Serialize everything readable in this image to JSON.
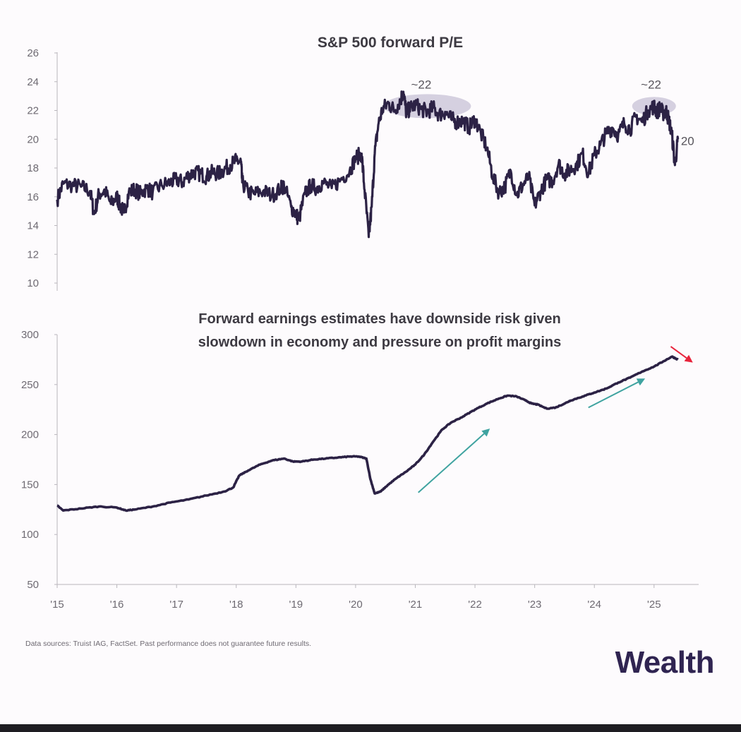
{
  "chart_data": [
    {
      "type": "line",
      "title": "S&P 500 forward P/E",
      "ylim": [
        10,
        26
      ],
      "yticks": [
        "26",
        "24",
        "22",
        "20",
        "18",
        "16",
        "14",
        "12",
        "10"
      ],
      "xlim": [
        2015,
        2025.7
      ],
      "series": [
        {
          "name": "S&P 500 forward P/E",
          "x": [
            2015.0,
            2015.1,
            2015.25,
            2015.4,
            2015.55,
            2015.62,
            2015.7,
            2015.8,
            2015.9,
            2016.0,
            2016.05,
            2016.12,
            2016.2,
            2016.3,
            2016.4,
            2016.5,
            2016.6,
            2016.75,
            2016.9,
            2017.0,
            2017.1,
            2017.2,
            2017.3,
            2017.4,
            2017.5,
            2017.6,
            2017.7,
            2017.8,
            2017.9,
            2018.0,
            2018.08,
            2018.1,
            2018.2,
            2018.3,
            2018.45,
            2018.6,
            2018.75,
            2018.8,
            2018.92,
            2019.0,
            2019.05,
            2019.15,
            2019.25,
            2019.35,
            2019.45,
            2019.6,
            2019.75,
            2019.9,
            2020.0,
            2020.1,
            2020.15,
            2020.22,
            2020.27,
            2020.32,
            2020.38,
            2020.45,
            2020.55,
            2020.65,
            2020.75,
            2020.8,
            2020.85,
            2020.9,
            2021.0,
            2021.1,
            2021.2,
            2021.3,
            2021.4,
            2021.5,
            2021.6,
            2021.7,
            2021.8,
            2021.9,
            2022.0,
            2022.1,
            2022.2,
            2022.3,
            2022.4,
            2022.5,
            2022.6,
            2022.7,
            2022.8,
            2022.9,
            2023.0,
            2023.1,
            2023.2,
            2023.3,
            2023.4,
            2023.5,
            2023.6,
            2023.7,
            2023.8,
            2023.9,
            2024.0,
            2024.1,
            2024.2,
            2024.3,
            2024.4,
            2024.5,
            2024.6,
            2024.7,
            2024.8,
            2024.9,
            2025.0,
            2025.05,
            2025.1,
            2025.15,
            2025.2,
            2025.25,
            2025.3,
            2025.35,
            2025.4
          ],
          "values": [
            15.8,
            16.9,
            16.8,
            16.7,
            16.4,
            14.8,
            16.2,
            16.4,
            15.5,
            16.0,
            15.4,
            14.9,
            16.3,
            16.5,
            16.2,
            16.6,
            16.3,
            16.8,
            17.0,
            17.2,
            17.0,
            17.5,
            17.7,
            17.6,
            17.4,
            17.7,
            17.6,
            17.9,
            18.2,
            18.5,
            18.4,
            17.0,
            16.3,
            16.2,
            16.4,
            16.1,
            16.6,
            16.8,
            15.3,
            14.8,
            14.4,
            16.2,
            16.8,
            16.6,
            17.0,
            16.6,
            17.2,
            17.8,
            18.7,
            19.0,
            16.5,
            13.2,
            15.3,
            19.0,
            21.0,
            22.1,
            22.5,
            22.0,
            22.7,
            23.3,
            21.8,
            22.1,
            22.4,
            22.1,
            21.9,
            22.2,
            21.7,
            21.9,
            21.4,
            21.2,
            21.3,
            20.8,
            21.4,
            20.4,
            19.4,
            17.4,
            16.3,
            16.7,
            17.8,
            16.1,
            16.8,
            17.4,
            15.4,
            16.4,
            17.2,
            17.1,
            18.3,
            17.6,
            17.9,
            18.2,
            19.0,
            17.6,
            18.9,
            19.6,
            20.4,
            20.8,
            20.3,
            21.1,
            20.7,
            21.6,
            21.2,
            22.0,
            22.3,
            21.9,
            22.2,
            21.8,
            22.0,
            21.3,
            20.3,
            18.2,
            20.0
          ]
        }
      ],
      "annotations": [
        {
          "text": "~22",
          "x": 2021.1,
          "y": 22.0
        },
        {
          "text": "~22",
          "x": 2024.95,
          "y": 22.0
        },
        {
          "text": "20",
          "x": 2025.45,
          "y": 19.9
        }
      ]
    },
    {
      "type": "line",
      "title": "Forward earnings estimates have downside risk given slowdown in economy and pressure on profit margins",
      "title_lines": [
        "Forward earnings estimates have downside risk given",
        "slowdown in economy and pressure on profit margins"
      ],
      "ylim": [
        50,
        300
      ],
      "yticks": [
        "300",
        "250",
        "200",
        "150",
        "100",
        "50"
      ],
      "xlim": [
        2015,
        2025.7
      ],
      "xticks": [
        "'15",
        "'16",
        "'17",
        "'18",
        "'19",
        "'20",
        "'21",
        "'22",
        "'23",
        "'24",
        "'25"
      ],
      "series": [
        {
          "name": "Forward earnings estimates",
          "x": [
            2015.0,
            2015.1,
            2015.4,
            2015.7,
            2016.0,
            2016.15,
            2016.3,
            2016.6,
            2016.9,
            2017.2,
            2017.5,
            2017.8,
            2017.95,
            2018.05,
            2018.2,
            2018.4,
            2018.6,
            2018.8,
            2018.95,
            2019.1,
            2019.3,
            2019.5,
            2019.7,
            2019.9,
            2020.05,
            2020.18,
            2020.25,
            2020.32,
            2020.42,
            2020.55,
            2020.7,
            2020.85,
            2021.0,
            2021.15,
            2021.3,
            2021.45,
            2021.6,
            2021.8,
            2022.0,
            2022.2,
            2022.4,
            2022.55,
            2022.7,
            2022.85,
            2022.95,
            2023.05,
            2023.2,
            2023.35,
            2023.5,
            2023.6,
            2023.8,
            2024.0,
            2024.2,
            2024.4,
            2024.6,
            2024.8,
            2025.0,
            2025.15,
            2025.3,
            2025.4
          ],
          "values": [
            129,
            124,
            126,
            128,
            127,
            124,
            125,
            128,
            132,
            135,
            139,
            143,
            147,
            159,
            164,
            170,
            174,
            176,
            173,
            173,
            175,
            176,
            177,
            178,
            178,
            176,
            155,
            141,
            143,
            150,
            157,
            163,
            170,
            180,
            193,
            205,
            212,
            218,
            225,
            231,
            236,
            239,
            238,
            234,
            231,
            230,
            226,
            227,
            231,
            234,
            238,
            242,
            246,
            252,
            257,
            263,
            268,
            273,
            278,
            275
          ]
        }
      ],
      "annotations": [
        {
          "type": "arrow",
          "from": [
            2021.05,
            142
          ],
          "to": [
            2022.25,
            206
          ],
          "color": "#3fa3a0"
        },
        {
          "type": "arrow",
          "from": [
            2023.9,
            227
          ],
          "to": [
            2024.85,
            256
          ],
          "color": "#3fa3a0"
        },
        {
          "type": "arrow",
          "from": [
            2025.28,
            288
          ],
          "to": [
            2025.65,
            272
          ],
          "color": "#e8243c"
        }
      ]
    }
  ],
  "footer": {
    "source": "Data sources: Truist IAG, FactSet. Past performance does not guarantee future results.",
    "brand": "Wealth"
  },
  "colors": {
    "line": "#2c2245",
    "axis": "#b9b6bc",
    "highlight": "#c7c2d6",
    "teal_arrow": "#3fa3a0",
    "red_arrow": "#e8243c"
  }
}
